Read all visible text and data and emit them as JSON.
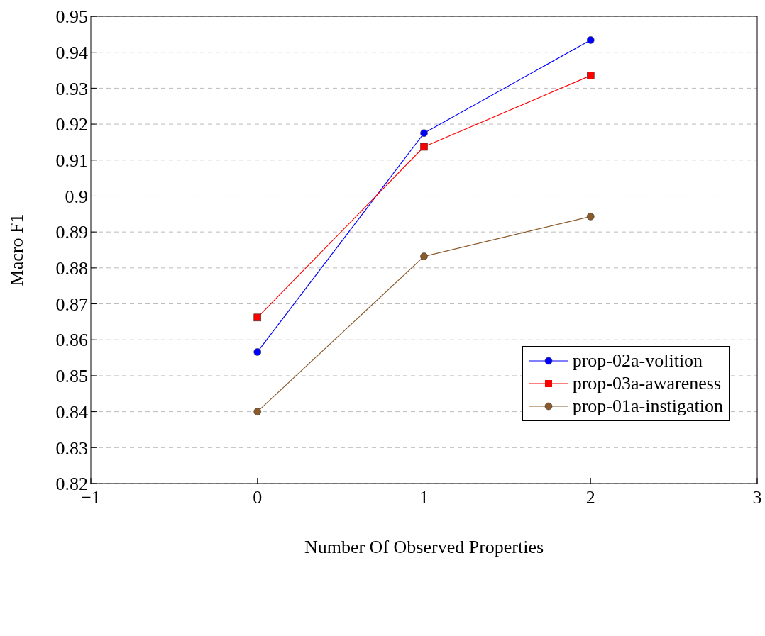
{
  "chart_data": {
    "type": "line",
    "xlabel": "Number Of Observed Properties",
    "ylabel": "Macro F1",
    "x": [
      0,
      1,
      2
    ],
    "series": [
      {
        "name": "prop-02a-volition",
        "color": "#0000ff",
        "marker": "circle",
        "values": [
          0.8566,
          0.9175,
          0.9434
        ]
      },
      {
        "name": "prop-03a-awareness",
        "color": "#ff0000",
        "marker": "square",
        "values": [
          0.8662,
          0.9137,
          0.9335
        ]
      },
      {
        "name": "prop-01a-instigation",
        "color": "#8b5a2b",
        "marker": "circle",
        "values": [
          0.84,
          0.8832,
          0.8943
        ]
      }
    ],
    "xlim": [
      -1,
      3
    ],
    "xticks": [
      {
        "value": -1,
        "label": "−1"
      },
      0,
      1,
      2,
      3
    ],
    "ylim": [
      0.82,
      0.95
    ],
    "yticks": [
      0.82,
      0.83,
      0.84,
      0.85,
      0.86,
      0.87,
      0.88,
      0.89,
      0.9,
      0.91,
      0.92,
      0.93,
      0.94,
      0.95
    ],
    "grid": "y",
    "legend": "right",
    "line_style": "solid"
  }
}
